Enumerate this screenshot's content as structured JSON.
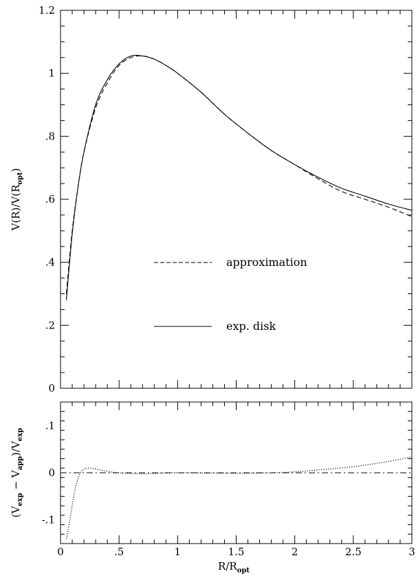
{
  "chart_data": [
    {
      "type": "line",
      "xlabel": "",
      "ylabel": "V(R)/V(R_opt)",
      "ylabel_parts": {
        "main": "V(R)/V(R",
        "sub": "opt",
        "close": ")"
      },
      "xlim": [
        0,
        3
      ],
      "ylim": [
        0,
        1.2
      ],
      "x_ticks": [
        0,
        0.5,
        1,
        1.5,
        2,
        2.5,
        3
      ],
      "y_ticks": [
        0,
        0.2,
        0.4,
        0.6,
        0.8,
        1.0,
        1.2
      ],
      "y_tick_labels": [
        "0",
        ".2",
        ".4",
        ".6",
        ".8",
        "1",
        "1.2"
      ],
      "legend_placement": "center",
      "series": [
        {
          "name": "approximation",
          "style": "dashed",
          "x": [
            0.05,
            0.1,
            0.15,
            0.2,
            0.3,
            0.4,
            0.5,
            0.6,
            0.7,
            0.8,
            0.9,
            1.0,
            1.2,
            1.4,
            1.6,
            1.8,
            2.0,
            2.2,
            2.4,
            2.6,
            2.8,
            3.0
          ],
          "y": [
            0.3,
            0.5,
            0.64,
            0.75,
            0.89,
            0.97,
            1.025,
            1.05,
            1.055,
            1.045,
            1.025,
            1.0,
            0.94,
            0.87,
            0.81,
            0.755,
            0.71,
            0.665,
            0.625,
            0.6,
            0.575,
            0.545
          ]
        },
        {
          "name": "exp. disk",
          "style": "solid",
          "x": [
            0.05,
            0.1,
            0.15,
            0.2,
            0.3,
            0.4,
            0.5,
            0.6,
            0.7,
            0.8,
            0.9,
            1.0,
            1.2,
            1.4,
            1.6,
            1.8,
            2.0,
            2.2,
            2.4,
            2.6,
            2.8,
            3.0
          ],
          "y": [
            0.28,
            0.49,
            0.64,
            0.75,
            0.9,
            0.98,
            1.03,
            1.055,
            1.055,
            1.045,
            1.025,
            1.0,
            0.94,
            0.87,
            0.81,
            0.755,
            0.71,
            0.67,
            0.635,
            0.61,
            0.585,
            0.565
          ]
        }
      ]
    },
    {
      "type": "line",
      "xlabel": "R/R_opt",
      "xlabel_parts": {
        "main": "R/R",
        "sub": "opt"
      },
      "ylabel": "(V_exp - V_app)/V_exp",
      "ylabel_parts": {
        "p1": "(V",
        "s1": "exp",
        "p2": " − V",
        "s2": "app",
        "p3": ")/V",
        "s3": "exp"
      },
      "xlim": [
        0,
        3
      ],
      "ylim": [
        -0.15,
        0.15
      ],
      "x_ticks": [
        0,
        0.5,
        1,
        1.5,
        2,
        2.5,
        3
      ],
      "x_tick_labels": [
        "0",
        ".5",
        "1",
        "1.5",
        "2",
        "2.5",
        "3"
      ],
      "y_ticks": [
        -0.1,
        0,
        0.1
      ],
      "y_tick_labels": [
        "-.1",
        "0",
        ".1"
      ],
      "series": [
        {
          "style": "dotted",
          "x": [
            0.05,
            0.08,
            0.12,
            0.16,
            0.2,
            0.25,
            0.3,
            0.4,
            0.5,
            0.7,
            1.0,
            1.5,
            1.8,
            2.0,
            2.2,
            2.5,
            2.8,
            3.0
          ],
          "y": [
            -0.14,
            -0.1,
            -0.04,
            -0.005,
            0.008,
            0.01,
            0.008,
            0.003,
            0.0,
            -0.002,
            0.0,
            -0.001,
            0.0,
            0.002,
            0.006,
            0.013,
            0.024,
            0.034
          ]
        },
        {
          "style": "dashdot",
          "x": [
            0,
            3
          ],
          "y": [
            0,
            0
          ]
        }
      ]
    }
  ]
}
